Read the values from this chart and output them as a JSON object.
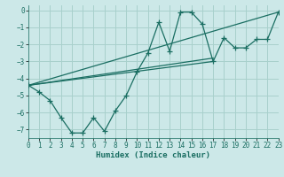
{
  "bg_color": "#cce8e8",
  "grid_color": "#a8d0cc",
  "line_color": "#1a6e62",
  "xlabel": "Humidex (Indice chaleur)",
  "xlim": [
    0,
    23
  ],
  "ylim": [
    -7.5,
    0.3
  ],
  "yticks": [
    0,
    -1,
    -2,
    -3,
    -4,
    -5,
    -6,
    -7
  ],
  "xticks": [
    0,
    1,
    2,
    3,
    4,
    5,
    6,
    7,
    8,
    9,
    10,
    11,
    12,
    13,
    14,
    15,
    16,
    17,
    18,
    19,
    20,
    21,
    22,
    23
  ],
  "main_x": [
    0,
    1,
    2,
    3,
    4,
    5,
    6,
    7,
    8,
    9,
    10,
    11,
    12,
    13,
    14,
    15,
    16,
    17,
    18,
    19,
    20,
    21,
    22,
    23
  ],
  "main_y": [
    -4.4,
    -4.8,
    -5.3,
    -6.3,
    -7.2,
    -7.2,
    -6.3,
    -7.1,
    -5.9,
    -5.0,
    -3.6,
    -2.5,
    -0.7,
    -2.4,
    -0.1,
    -0.1,
    -0.8,
    -3.0,
    -1.6,
    -2.2,
    -2.2,
    -1.7,
    -1.7,
    -0.1
  ],
  "ref_lines": [
    {
      "x": [
        0,
        23
      ],
      "y": [
        -4.4,
        -0.1
      ]
    },
    {
      "x": [
        0,
        17
      ],
      "y": [
        -4.4,
        -3.0
      ]
    },
    {
      "x": [
        0,
        17
      ],
      "y": [
        -4.4,
        -2.8
      ]
    }
  ]
}
